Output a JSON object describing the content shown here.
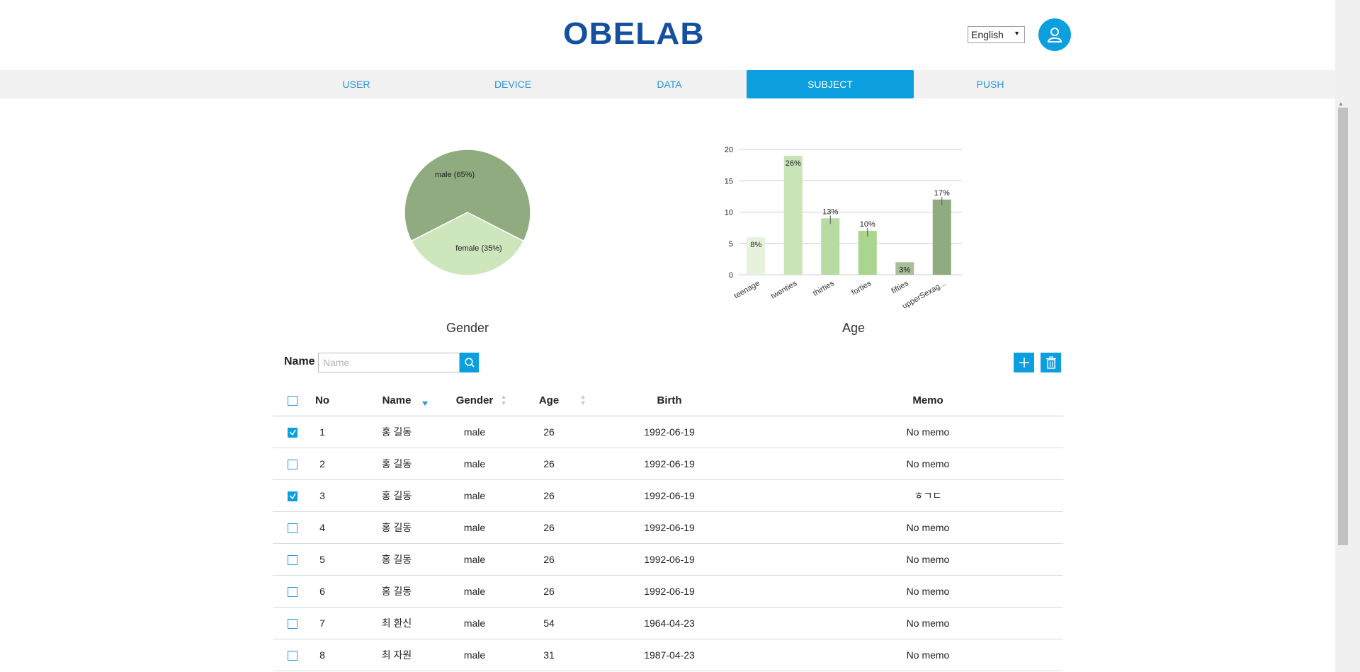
{
  "header": {
    "logo": "OBELAB",
    "language": "English"
  },
  "nav": {
    "tabs": [
      {
        "label": "USER"
      },
      {
        "label": "DEVICE"
      },
      {
        "label": "DATA"
      },
      {
        "label": "SUBJECT"
      },
      {
        "label": "PUSH"
      }
    ],
    "active": "SUBJECT"
  },
  "colors": {
    "accent": "#0b9fe0",
    "brand": "#14509e",
    "male": "#8fab7f",
    "female": "#cde6bb"
  },
  "chart_data": [
    {
      "type": "pie",
      "title": "Gender",
      "slices": [
        {
          "label": "male (65%)",
          "value": 65
        },
        {
          "label": "female (35%)",
          "value": 35
        }
      ]
    },
    {
      "type": "bar",
      "title": "Age",
      "categories": [
        "teenage",
        "twenties",
        "thirties",
        "forties",
        "fifties",
        "upperSexag..."
      ],
      "values": [
        6,
        19,
        9,
        7,
        2,
        12
      ],
      "labels": [
        "8%",
        "26%",
        "13%",
        "10%",
        "3%",
        "17%"
      ],
      "yticks": [
        "0",
        "5",
        "10",
        "15",
        "20"
      ],
      "ylim": [
        0,
        20
      ],
      "grid": true,
      "bar_colors": [
        "#e6f2dc",
        "#c9e4b6",
        "#b7dba0",
        "#a9d58f",
        "#a8bf9a",
        "#8fab7f"
      ]
    }
  ],
  "search": {
    "label": "Name",
    "placeholder": "Name"
  },
  "table": {
    "headers": {
      "no": "No",
      "name": "Name",
      "gender": "Gender",
      "age": "Age",
      "birth": "Birth",
      "memo": "Memo"
    },
    "rows": [
      {
        "no": "1",
        "name": "홍 길동",
        "gender": "male",
        "age": "26",
        "birth": "1992-06-19",
        "memo": "No memo",
        "checked": true
      },
      {
        "no": "2",
        "name": "홍 길동",
        "gender": "male",
        "age": "26",
        "birth": "1992-06-19",
        "memo": "No memo",
        "checked": false
      },
      {
        "no": "3",
        "name": "홍 길동",
        "gender": "male",
        "age": "26",
        "birth": "1992-06-19",
        "memo": "ㅎㄱㄷ",
        "checked": true
      },
      {
        "no": "4",
        "name": "홍 길동",
        "gender": "male",
        "age": "26",
        "birth": "1992-06-19",
        "memo": "No memo",
        "checked": false
      },
      {
        "no": "5",
        "name": "홍 길동",
        "gender": "male",
        "age": "26",
        "birth": "1992-06-19",
        "memo": "No memo",
        "checked": false
      },
      {
        "no": "6",
        "name": "홍 길동",
        "gender": "male",
        "age": "26",
        "birth": "1992-06-19",
        "memo": "No memo",
        "checked": false
      },
      {
        "no": "7",
        "name": "최 환신",
        "gender": "male",
        "age": "54",
        "birth": "1964-04-23",
        "memo": "No memo",
        "checked": false
      },
      {
        "no": "8",
        "name": "최 자원",
        "gender": "male",
        "age": "31",
        "birth": "1987-04-23",
        "memo": "No memo",
        "checked": false
      }
    ]
  },
  "icons": {
    "search": "search-icon",
    "add": "plus-icon",
    "delete": "trash-icon",
    "user": "user-icon"
  }
}
